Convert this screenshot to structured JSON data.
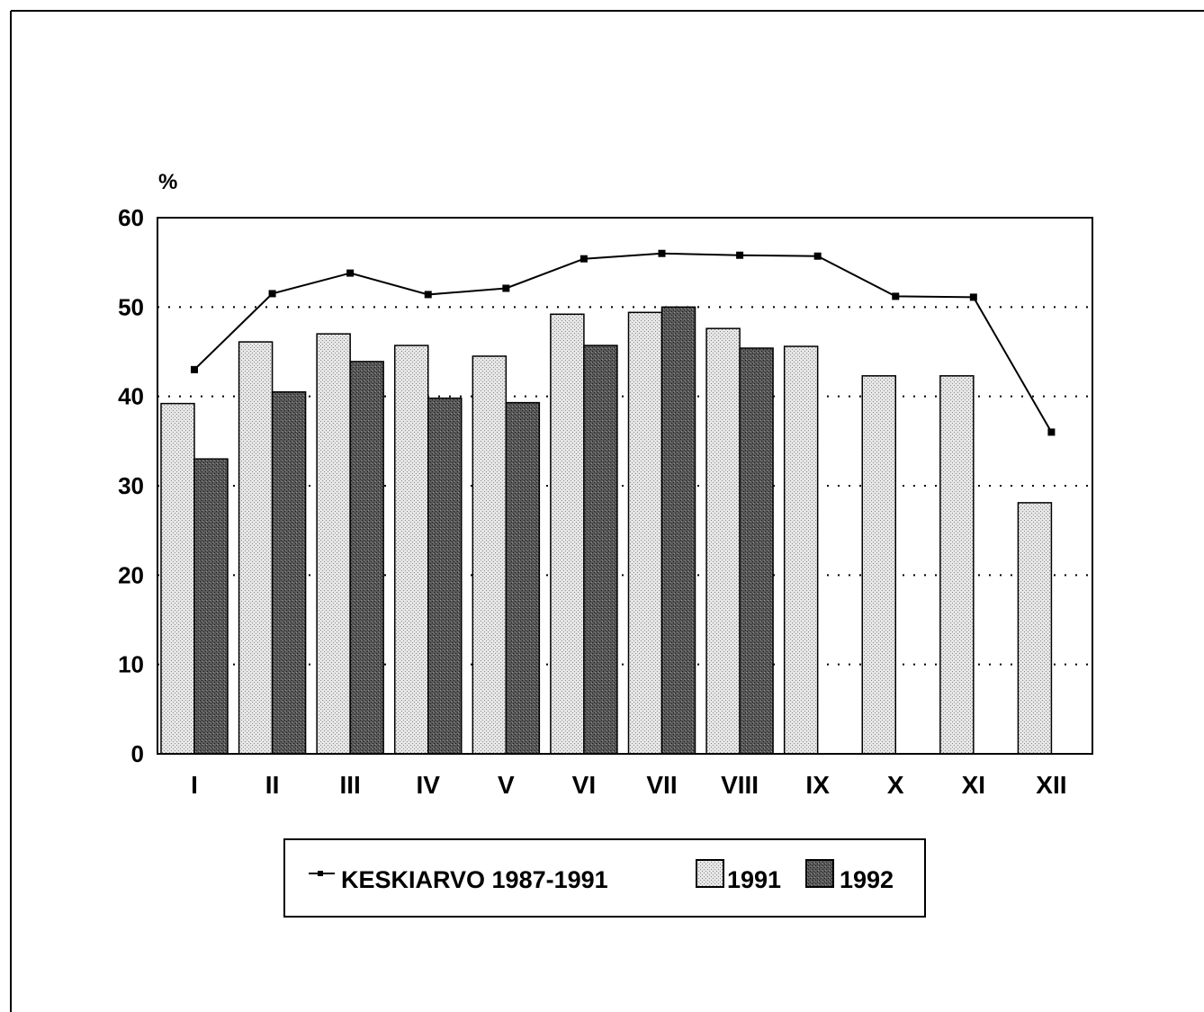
{
  "chart_data": {
    "type": "bar",
    "ylabel": "%",
    "ylim": [
      0,
      60
    ],
    "yticks": [
      "0",
      "10",
      "20",
      "30",
      "40",
      "50",
      "60"
    ],
    "grid": "horizontal dotted",
    "legend_placement": "bottom-center",
    "categories": [
      "I",
      "II",
      "III",
      "IV",
      "V",
      "VI",
      "VII",
      "VIII",
      "IX",
      "X",
      "XI",
      "XII"
    ],
    "series": [
      {
        "name": "1991",
        "kind": "bar",
        "pattern": "light-gray-dotted",
        "values": [
          39.2,
          46.1,
          47.0,
          45.7,
          44.5,
          49.2,
          49.4,
          47.6,
          45.6,
          42.3,
          42.3,
          28.1
        ]
      },
      {
        "name": "1992",
        "kind": "bar",
        "pattern": "dark-gray-dotted",
        "values": [
          33.0,
          40.5,
          43.9,
          39.8,
          39.3,
          45.7,
          50.0,
          45.4,
          null,
          null,
          null,
          null
        ]
      },
      {
        "name": "KESKIARVO 1987-1991",
        "kind": "line",
        "marker": "square",
        "values": [
          43.0,
          51.5,
          53.8,
          51.4,
          52.1,
          55.4,
          56.0,
          55.8,
          55.7,
          51.2,
          51.1,
          36.0
        ]
      }
    ],
    "legend": [
      "KESKIARVO 1987-1991",
      "1991",
      "1992"
    ]
  }
}
